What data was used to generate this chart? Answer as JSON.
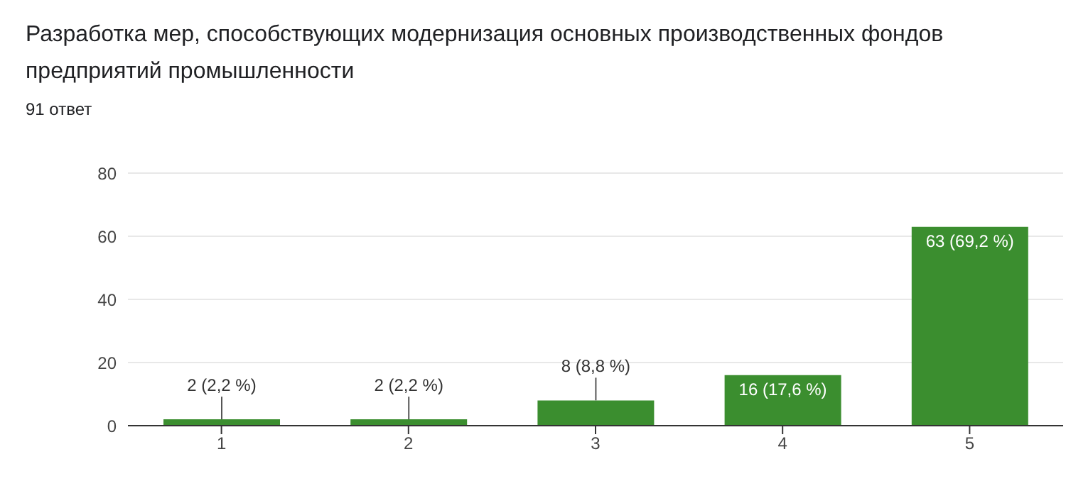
{
  "chart_data": {
    "type": "bar",
    "title": "Разработка мер, способствующих модернизация основных производственных фондов предприятий промышленности",
    "subtitle": "91 ответ",
    "categories": [
      "1",
      "2",
      "3",
      "4",
      "5"
    ],
    "values": [
      2,
      2,
      8,
      16,
      63
    ],
    "value_labels": [
      "2 (2,2 %)",
      "2 (2,2 %)",
      "8 (8,8 %)",
      "16 (17,6 %)",
      "63 (69,2 %)"
    ],
    "color": "#3b8e2f",
    "ylim": [
      0,
      80
    ],
    "yticks": [
      0,
      20,
      40,
      60,
      80
    ],
    "grid": "y"
  }
}
